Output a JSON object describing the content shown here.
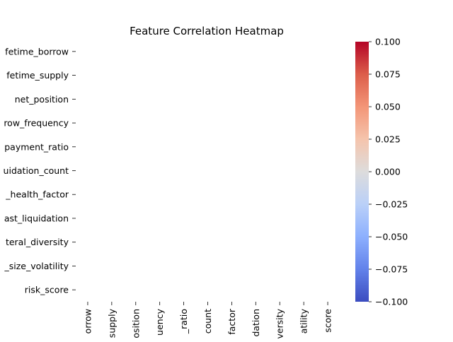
{
  "chart_data": {
    "type": "heatmap",
    "title": "Feature Correlation Heatmap",
    "row_labels": [
      "lifetime_borrow",
      "lifetime_supply",
      "net_position",
      "borrow_frequency",
      "repayment_ratio",
      "liquidation_count",
      "avg_health_factor",
      "days_since_last_liquidation",
      "collateral_diversity",
      "position_size_volatility",
      "risk_score"
    ],
    "row_labels_visible": [
      "fetime_borrow",
      "fetime_supply",
      "net_position",
      "row_frequency",
      "payment_ratio",
      "uidation_count",
      "_health_factor",
      "ast_liquidation",
      "teral_diversity",
      "_size_volatility",
      "risk_score"
    ],
    "col_labels_visible": [
      "orrow",
      "supply",
      "osition",
      "uency",
      "_ratio",
      "count",
      "factor",
      "dation",
      "versity",
      "atility",
      "score"
    ],
    "values": [
      [
        null,
        null,
        null,
        null,
        null,
        null,
        null,
        null,
        null,
        null,
        null
      ],
      [
        null,
        null,
        null,
        null,
        null,
        null,
        null,
        null,
        null,
        null,
        null
      ],
      [
        null,
        null,
        null,
        null,
        null,
        null,
        null,
        null,
        null,
        null,
        null
      ],
      [
        null,
        null,
        null,
        null,
        null,
        null,
        null,
        null,
        null,
        null,
        null
      ],
      [
        null,
        null,
        null,
        null,
        null,
        null,
        null,
        null,
        null,
        null,
        null
      ],
      [
        null,
        null,
        null,
        null,
        null,
        null,
        null,
        null,
        null,
        null,
        null
      ],
      [
        null,
        null,
        null,
        null,
        null,
        null,
        null,
        null,
        null,
        null,
        null
      ],
      [
        null,
        null,
        null,
        null,
        null,
        null,
        null,
        null,
        null,
        null,
        null
      ],
      [
        null,
        null,
        null,
        null,
        null,
        null,
        null,
        null,
        null,
        null,
        null
      ],
      [
        null,
        null,
        null,
        null,
        null,
        null,
        null,
        null,
        null,
        null,
        null
      ],
      [
        null,
        null,
        null,
        null,
        null,
        null,
        null,
        null,
        null,
        null,
        null
      ]
    ],
    "colormap": "coolwarm",
    "colorbar": {
      "range": [
        -0.1,
        0.1
      ],
      "ticks": [
        0.1,
        0.075,
        0.05,
        0.025,
        0.0,
        -0.025,
        -0.05,
        -0.075,
        -0.1
      ],
      "tick_labels": [
        "0.100",
        "0.075",
        "0.050",
        "0.025",
        "0.000",
        "−0.025",
        "−0.050",
        "−0.075",
        "−0.100"
      ],
      "colors": [
        "#b40426",
        "#dc5d4a",
        "#f39577",
        "#f5c4ac",
        "#dddcdc",
        "#bad0f8",
        "#8db0fe",
        "#6282ea",
        "#3b4cc0"
      ]
    }
  }
}
